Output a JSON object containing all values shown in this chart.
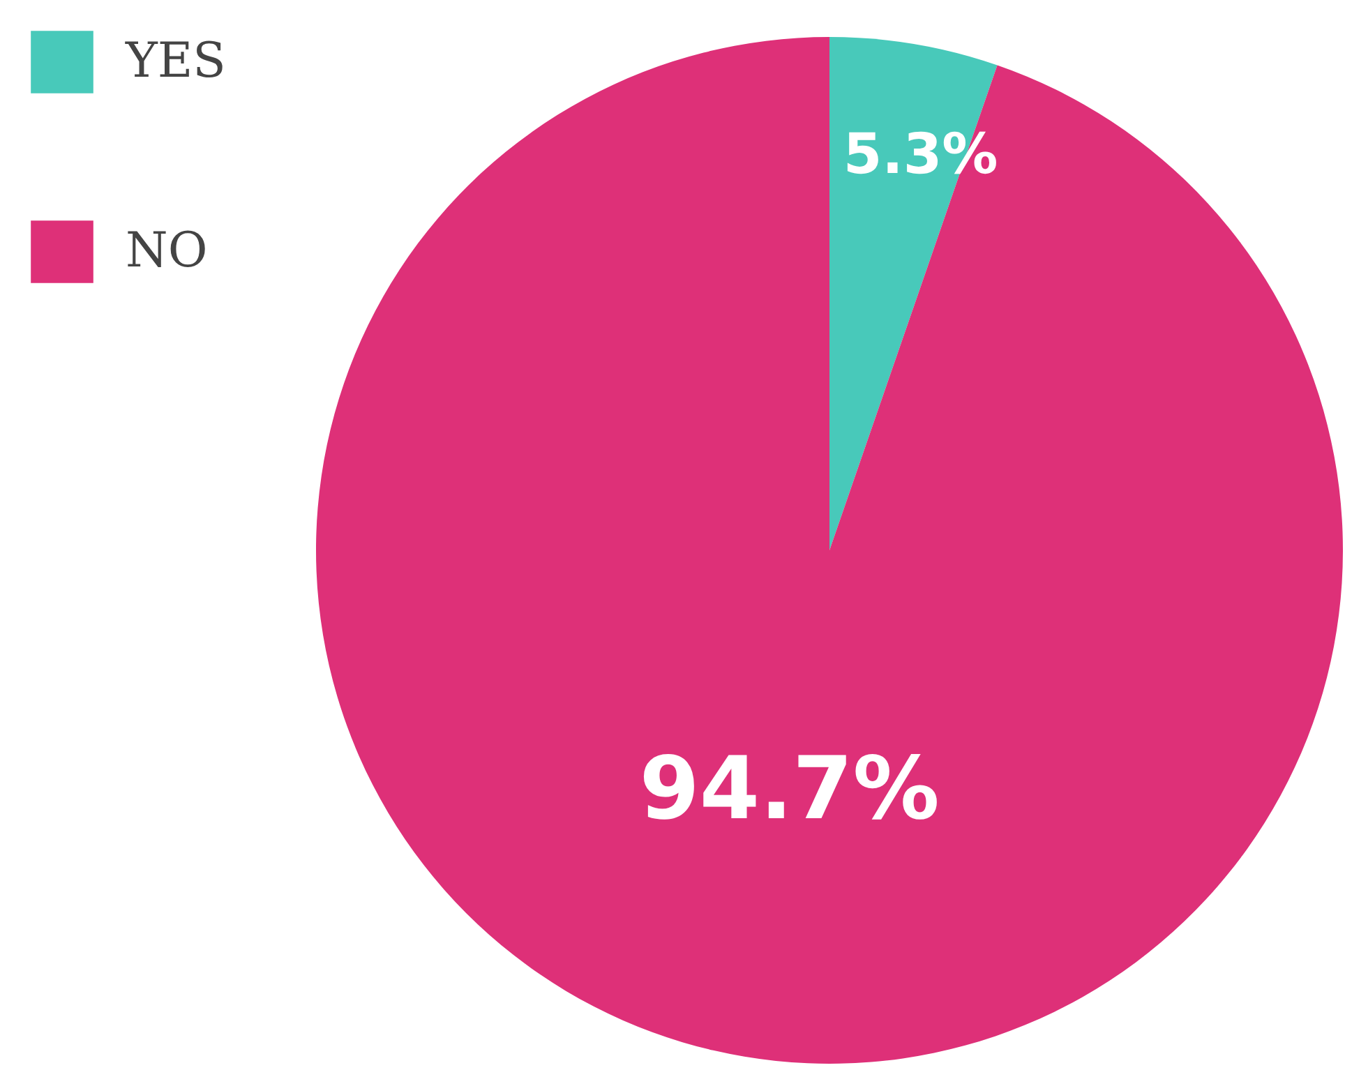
{
  "chart_data": {
    "type": "pie",
    "categories": [
      "YES",
      "NO"
    ],
    "values": [
      5.3,
      94.7
    ],
    "colors": [
      "#48c9ba",
      "#de3078"
    ],
    "value_labels": [
      "5.3%",
      "94.7%"
    ],
    "legend": "top left"
  }
}
